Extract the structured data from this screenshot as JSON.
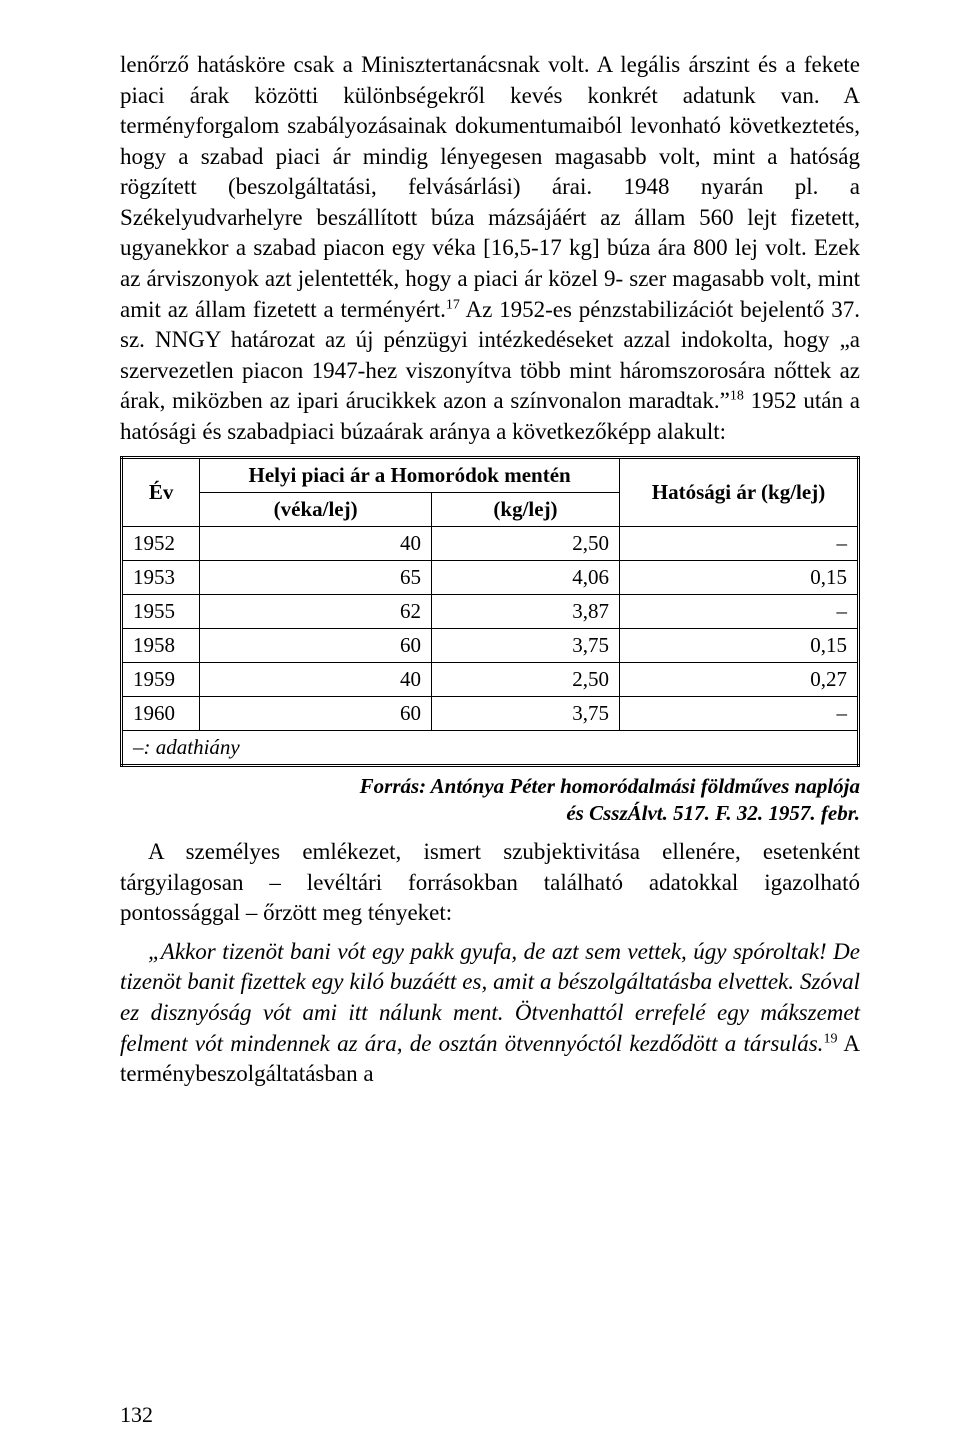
{
  "paragraphs": {
    "p1a": "lenőrző hatásköre csak a Minisztertanácsnak volt. A legális árszint és a fekete piaci árak közötti különbségekről kevés konkrét adatunk van. A terményforgalom szabályozásainak dokumentumaiból levonható következtetés, hogy a szabad piaci ár mindig lényegesen magasabb volt, mint a hatóság rögzített (beszolgáltatási, felvásárlási) árai. 1948 nyarán pl. a Székelyudvarhelyre beszállított búza mázsájáért az állam 560 lejt fizetett, ugyanekkor a szabad piacon egy véka [16,5-17 kg] búza ára 800 lej volt. Ezek az árviszonyok azt jelentették, hogy a piaci ár közel 9- szer magasabb volt, mint amit az állam fizetett a terményért.",
    "p1b_sup": "17",
    "p1c": " Az 1952-es pénzstabilizációt bejelentő 37. sz. NNGY határozat az új pénzügyi intézkedéseket azzal indokolta, hogy „a szervezetlen piacon 1947-hez viszonyítva több mint háromszorosára nőttek az árak, miközben az ipari árucikkek azon a színvonalon maradtak.”",
    "p1d_sup": "18",
    "p1e": " 1952 után a hatósági és szabadpiaci búzaárak aránya a következőképp alakult:",
    "p2": "A személyes emlékezet, ismert szubjektivitása ellenére, esetenként tárgyilagosan – levéltári forrásokban található adatokkal igazolható pontossággal – őrzött meg tényeket:",
    "p3a": "„Akkor tizenöt bani vót egy pakk gyufa, de azt sem vettek, úgy spóroltak! De tizenöt banit fizettek egy kiló buzáétt es, amit a bészolgáltatásba elvettek. Szóval ez disznyóság vót ami itt nálunk ment. Ötvenhattól errefelé egy mákszemet felment vót mindennek az ára, de osztán ötvennyóctól kezdődött a társulás.",
    "p3b_sup": "19",
    "p3c": " A terménybeszolgáltatásban a"
  },
  "table": {
    "headers": {
      "year": "Év",
      "local_group": "Helyi piaci ár a Homoródok mentén",
      "local1": "(véka/lej)",
      "local2": "(kg/lej)",
      "official": "Hatósági ár (kg/lej)"
    },
    "rows": [
      {
        "year": "1952",
        "veka": "40",
        "kg": "2,50",
        "off": "–"
      },
      {
        "year": "1953",
        "veka": "65",
        "kg": "4,06",
        "off": "0,15"
      },
      {
        "year": "1955",
        "veka": "62",
        "kg": "3,87",
        "off": "–"
      },
      {
        "year": "1958",
        "veka": "60",
        "kg": "3,75",
        "off": "0,15"
      },
      {
        "year": "1959",
        "veka": "40",
        "kg": "2,50",
        "off": "0,27"
      },
      {
        "year": "1960",
        "veka": "60",
        "kg": "3,75",
        "off": "–"
      }
    ],
    "note": "–: adathiány"
  },
  "source": {
    "line1": "Forrás: Antónya Péter homoródalmási földműves naplója",
    "line2": "és CsszÁlvt. 517. F. 32. 1957. febr."
  },
  "pageNumber": "132"
}
